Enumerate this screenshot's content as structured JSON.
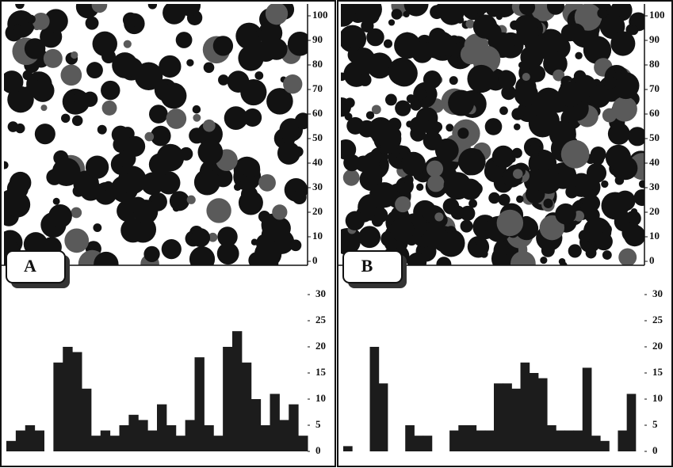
{
  "chart_data": [
    {
      "type": "image",
      "label": "A",
      "ylim": [
        0,
        100
      ],
      "yticks": [
        0,
        10,
        20,
        30,
        40,
        50,
        60,
        70,
        80,
        90,
        100
      ],
      "density": 190
    },
    {
      "type": "bar",
      "color": "#1c1c1c",
      "ylim": [
        0,
        30
      ],
      "yticks": [
        0,
        5,
        10,
        15,
        20,
        25,
        30
      ],
      "values": [
        2,
        4,
        5,
        4,
        0,
        17,
        20,
        19,
        12,
        3,
        4,
        3,
        5,
        7,
        6,
        4,
        9,
        5,
        3,
        6,
        18,
        5,
        3,
        20,
        23,
        17,
        10,
        5,
        11,
        6,
        9,
        3
      ]
    },
    {
      "type": "image",
      "label": "B",
      "ylim": [
        0,
        100
      ],
      "yticks": [
        0,
        10,
        20,
        30,
        40,
        50,
        60,
        70,
        80,
        90,
        100
      ],
      "density": 420
    },
    {
      "type": "bar",
      "color": "#1c1c1c",
      "ylim": [
        0,
        30
      ],
      "yticks": [
        0,
        5,
        10,
        15,
        20,
        25,
        30
      ],
      "values": [
        1,
        0,
        0,
        20,
        13,
        0,
        0,
        5,
        3,
        3,
        0,
        0,
        4,
        5,
        5,
        4,
        4,
        13,
        13,
        12,
        17,
        15,
        14,
        5,
        4,
        4,
        4,
        16,
        3,
        2,
        0,
        4,
        11,
        0
      ]
    }
  ]
}
